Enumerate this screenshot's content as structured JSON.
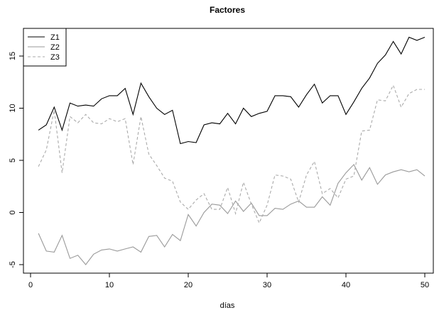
{
  "chart_data": {
    "type": "line",
    "title": "Factores",
    "xlabel": "días",
    "ylabel": "",
    "xlim": [
      1,
      50
    ],
    "ylim": [
      -5,
      17
    ],
    "xticks": [
      0,
      10,
      20,
      30,
      40,
      50
    ],
    "yticks": [
      -5,
      0,
      5,
      10,
      15
    ],
    "grid": false,
    "legend_position": "top-left",
    "x": [
      1,
      2,
      3,
      4,
      5,
      6,
      7,
      8,
      9,
      10,
      11,
      12,
      13,
      14,
      15,
      16,
      17,
      18,
      19,
      20,
      21,
      22,
      23,
      24,
      25,
      26,
      27,
      28,
      29,
      30,
      31,
      32,
      33,
      34,
      35,
      36,
      37,
      38,
      39,
      40,
      41,
      42,
      43,
      44,
      45,
      46,
      47,
      48,
      49,
      50
    ],
    "series": [
      {
        "name": "Z1",
        "color": "#000000",
        "dash": "solid",
        "values": [
          7.9,
          8.4,
          10.1,
          7.9,
          10.5,
          10.2,
          10.3,
          10.2,
          10.9,
          11.2,
          11.2,
          11.9,
          9.4,
          12.4,
          11.1,
          10.0,
          9.4,
          9.8,
          6.6,
          6.8,
          6.7,
          8.4,
          8.6,
          8.5,
          9.5,
          8.5,
          10.0,
          9.2,
          9.5,
          9.7,
          11.2,
          11.2,
          11.1,
          10.1,
          11.3,
          12.3,
          10.5,
          11.2,
          11.2,
          9.4,
          10.6,
          11.9,
          12.9,
          14.3,
          15.1,
          16.4,
          15.2,
          16.8,
          16.5,
          16.8
        ]
      },
      {
        "name": "Z2",
        "color": "#999999",
        "dash": "solid",
        "values": [
          -2.0,
          -3.7,
          -3.8,
          -2.2,
          -4.4,
          -4.1,
          -5.0,
          -4.0,
          -3.6,
          -3.5,
          -3.7,
          -3.5,
          -3.3,
          -3.8,
          -2.3,
          -2.2,
          -3.3,
          -2.1,
          -2.7,
          -0.2,
          -1.3,
          0.0,
          0.8,
          0.7,
          -0.1,
          1.1,
          0.1,
          0.9,
          -0.3,
          -0.3,
          0.4,
          0.3,
          0.8,
          1.1,
          0.5,
          0.5,
          1.5,
          0.7,
          2.8,
          3.8,
          4.6,
          3.1,
          4.3,
          2.7,
          3.6,
          3.9,
          4.1,
          3.9,
          4.1,
          3.5
        ]
      },
      {
        "name": "Z3",
        "color": "#aaaaaa",
        "dash": "dashed",
        "values": [
          4.4,
          6.0,
          9.8,
          3.8,
          9.2,
          8.6,
          9.4,
          8.6,
          8.5,
          9.0,
          8.7,
          9.0,
          4.6,
          9.2,
          5.6,
          4.5,
          3.3,
          3.0,
          1.0,
          0.3,
          1.2,
          1.8,
          0.3,
          0.3,
          2.4,
          -0.1,
          2.9,
          0.8,
          -1.0,
          0.7,
          3.6,
          3.5,
          3.2,
          1.0,
          3.6,
          4.9,
          1.8,
          2.3,
          1.4,
          3.2,
          3.5,
          7.8,
          7.9,
          10.8,
          10.7,
          12.2,
          10.1,
          11.4,
          11.8,
          11.8
        ]
      }
    ]
  }
}
